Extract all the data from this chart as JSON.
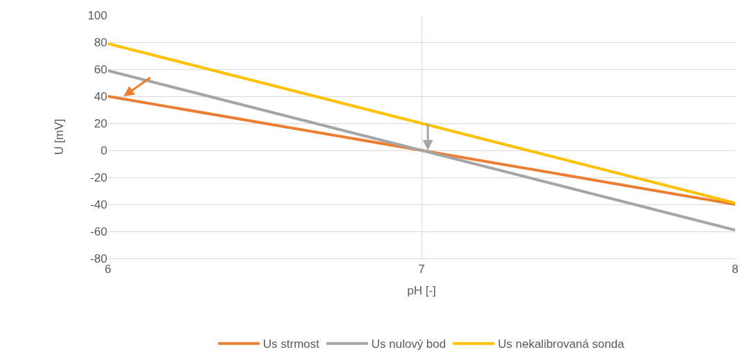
{
  "chart_data": {
    "type": "line",
    "xlabel": "pH [-]",
    "ylabel": "U [mV]",
    "x": [
      6,
      7,
      8
    ],
    "series": [
      {
        "name": "Us strmost",
        "color": "#ed7d31",
        "values": [
          40,
          0,
          -40
        ]
      },
      {
        "name": "Us nulový bod",
        "color": "#a5a5a5",
        "values": [
          59,
          0,
          -59
        ]
      },
      {
        "name": "Us nekalibrovaná sonda",
        "color": "#ffc000",
        "values": [
          79,
          20,
          -39
        ]
      }
    ],
    "xlim": [
      6,
      8
    ],
    "xticks": [
      6,
      7,
      8
    ],
    "ylim": [
      -80,
      100
    ],
    "yticks": [
      -80,
      -60,
      -40,
      -20,
      0,
      20,
      40,
      60,
      80,
      100
    ],
    "grid": true,
    "legend": "bottom",
    "marker": "none",
    "line_style": "solid"
  }
}
